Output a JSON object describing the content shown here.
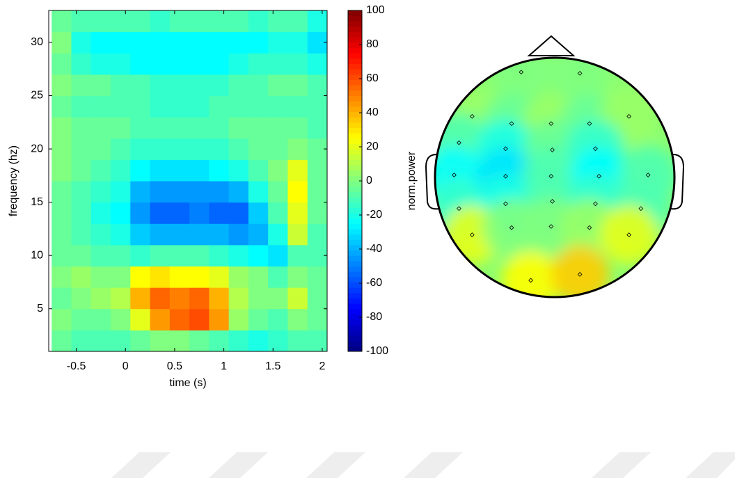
{
  "chart_data": [
    {
      "type": "heatmap",
      "xlabel": "time (s)",
      "ylabel": "frequency (hz)",
      "colormap": "jet",
      "x": [
        -0.65,
        -0.45,
        -0.25,
        -0.05,
        0.15,
        0.35,
        0.55,
        0.75,
        0.95,
        1.15,
        1.35,
        1.55,
        1.75,
        1.95
      ],
      "y": [
        2,
        4,
        6,
        8,
        10,
        12,
        14,
        16,
        18,
        20,
        22,
        24,
        26,
        28,
        30,
        32
      ],
      "z": [
        [
          -5,
          -10,
          -10,
          -10,
          -5,
          0,
          0,
          -5,
          -10,
          -15,
          -20,
          -15,
          -10,
          -10
        ],
        [
          0,
          -5,
          -5,
          0,
          20,
          45,
          55,
          60,
          45,
          5,
          -5,
          -10,
          0,
          -5
        ],
        [
          -5,
          0,
          5,
          10,
          40,
          55,
          50,
          55,
          40,
          10,
          0,
          0,
          15,
          -5
        ],
        [
          0,
          5,
          0,
          0,
          25,
          30,
          25,
          25,
          20,
          5,
          0,
          -10,
          0,
          -5
        ],
        [
          -5,
          -5,
          -10,
          -10,
          -15,
          -10,
          -10,
          -10,
          -15,
          -20,
          -25,
          -30,
          -10,
          -10
        ],
        [
          -5,
          -10,
          -15,
          -20,
          -35,
          -40,
          -40,
          -40,
          -40,
          -45,
          -40,
          -20,
          15,
          -10
        ],
        [
          -5,
          -10,
          -20,
          -25,
          -45,
          -55,
          -55,
          -50,
          -55,
          -55,
          -35,
          -10,
          20,
          -5
        ],
        [
          -5,
          -10,
          -15,
          -20,
          -40,
          -45,
          -45,
          -45,
          -45,
          -40,
          -20,
          -5,
          25,
          -5
        ],
        [
          0,
          -5,
          -10,
          -15,
          -25,
          -30,
          -30,
          -30,
          -25,
          -20,
          -10,
          0,
          20,
          -5
        ],
        [
          0,
          -5,
          -5,
          -10,
          -15,
          -15,
          -15,
          -15,
          -15,
          -10,
          -5,
          -5,
          0,
          -5
        ],
        [
          0,
          -5,
          -5,
          -5,
          -10,
          -10,
          -10,
          -10,
          -10,
          -5,
          -5,
          -5,
          -5,
          -10
        ],
        [
          -5,
          -10,
          -10,
          -10,
          -10,
          -15,
          -15,
          -15,
          -10,
          -10,
          -10,
          -10,
          -10,
          -10
        ],
        [
          0,
          -5,
          -5,
          -10,
          -10,
          -15,
          -15,
          -15,
          -15,
          -10,
          -10,
          -5,
          -5,
          -10
        ],
        [
          -5,
          -15,
          -20,
          -20,
          -25,
          -25,
          -25,
          -25,
          -25,
          -20,
          -15,
          -15,
          -15,
          -20
        ],
        [
          0,
          -20,
          -25,
          -25,
          -25,
          -25,
          -25,
          -25,
          -25,
          -25,
          -25,
          -20,
          -20,
          -30
        ],
        [
          -5,
          -10,
          -10,
          -10,
          -10,
          -15,
          -10,
          -10,
          -10,
          -10,
          -15,
          -10,
          -10,
          -20
        ]
      ],
      "xlim": [
        -0.78,
        2.05
      ],
      "ylim": [
        1,
        33
      ],
      "xticks": [
        -0.5,
        0,
        0.5,
        1,
        1.5,
        2
      ],
      "yticks": [
        5,
        10,
        15,
        20,
        25,
        30
      ],
      "colorbar": {
        "lim": [
          -100,
          100
        ],
        "ticks": [
          -100,
          -80,
          -60,
          -40,
          -20,
          0,
          20,
          40,
          60,
          80,
          100
        ],
        "label": "norm.power"
      }
    },
    {
      "type": "topoplot",
      "colormap": "jet",
      "electrodes": [
        {
          "x": -0.28,
          "y": -0.88,
          "value": 0
        },
        {
          "x": 0.21,
          "y": -0.87,
          "value": 0
        },
        {
          "x": -0.69,
          "y": -0.51,
          "value": 5
        },
        {
          "x": -0.36,
          "y": -0.45,
          "value": -5
        },
        {
          "x": -0.03,
          "y": -0.45,
          "value": 5
        },
        {
          "x": 0.29,
          "y": -0.45,
          "value": -5
        },
        {
          "x": 0.62,
          "y": -0.51,
          "value": 5
        },
        {
          "x": -0.8,
          "y": -0.29,
          "value": -10
        },
        {
          "x": -0.41,
          "y": -0.24,
          "value": -20
        },
        {
          "x": -0.02,
          "y": -0.23,
          "value": -5
        },
        {
          "x": 0.34,
          "y": -0.24,
          "value": -15
        },
        {
          "x": -0.84,
          "y": -0.02,
          "value": -25
        },
        {
          "x": -0.41,
          "y": -0.01,
          "value": -30
        },
        {
          "x": -0.03,
          "y": -0.01,
          "value": -10
        },
        {
          "x": 0.37,
          "y": -0.01,
          "value": -25
        },
        {
          "x": 0.78,
          "y": -0.02,
          "value": -10
        },
        {
          "x": -0.8,
          "y": 0.26,
          "value": -15
        },
        {
          "x": -0.41,
          "y": 0.22,
          "value": -20
        },
        {
          "x": -0.02,
          "y": 0.2,
          "value": -10
        },
        {
          "x": 0.34,
          "y": 0.22,
          "value": -15
        },
        {
          "x": 0.72,
          "y": 0.26,
          "value": -10
        },
        {
          "x": -0.69,
          "y": 0.48,
          "value": 20
        },
        {
          "x": -0.36,
          "y": 0.42,
          "value": 0
        },
        {
          "x": -0.03,
          "y": 0.41,
          "value": 0
        },
        {
          "x": 0.29,
          "y": 0.42,
          "value": 5
        },
        {
          "x": 0.62,
          "y": 0.48,
          "value": 20
        },
        {
          "x": -0.2,
          "y": 0.86,
          "value": 25
        },
        {
          "x": 0.21,
          "y": 0.81,
          "value": 35
        }
      ]
    }
  ]
}
